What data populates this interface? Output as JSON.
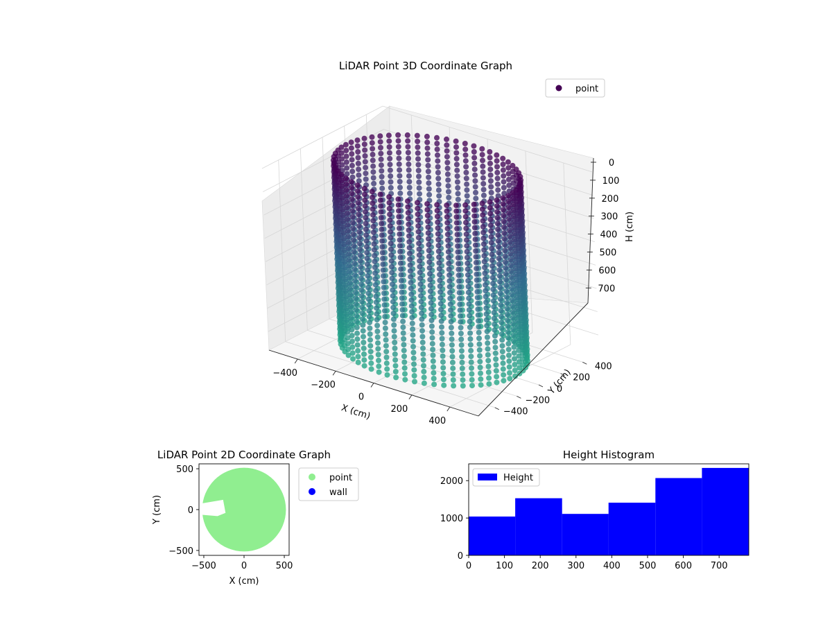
{
  "chart_data": [
    {
      "type": "scatter",
      "title": "LiDAR Point 3D Coordinate Graph",
      "xlabel": "X (cm)",
      "ylabel": "Y (cm)",
      "zlabel": "H (cm)",
      "xlim": [
        -550,
        550
      ],
      "ylim": [
        -550,
        550
      ],
      "zlim": [
        780,
        0
      ],
      "x_ticks": [
        -400,
        -200,
        0,
        200,
        400
      ],
      "y_ticks": [
        -400,
        -200,
        0,
        200,
        400
      ],
      "z_ticks": [
        0,
        100,
        200,
        300,
        400,
        500,
        600,
        700
      ],
      "grid": true,
      "legend": {
        "position": "top-right",
        "entries": [
          "point"
        ]
      },
      "colors": {
        "top": "#440154",
        "bottom": "#21a685"
      },
      "series": [
        {
          "name": "point",
          "shape": "cylindrical wall of points",
          "radius_cm": 520,
          "height_range_cm": [
            0,
            780
          ],
          "angle_step_deg": 6,
          "height_step_cm": 25
        }
      ]
    },
    {
      "type": "scatter",
      "title": "LiDAR Point 2D Coordinate Graph",
      "xlabel": "X (cm)",
      "ylabel": "Y (cm)",
      "xlim": [
        -560,
        560
      ],
      "ylim": [
        -560,
        560
      ],
      "x_ticks": [
        -500,
        0,
        500
      ],
      "y_ticks": [
        -500,
        0,
        500
      ],
      "legend": {
        "position": "right-outside",
        "entries": [
          "point",
          "wall"
        ]
      },
      "colors": {
        "point": "#90ee90",
        "wall": "#0000ff"
      },
      "series": [
        {
          "name": "point",
          "shape": "filled disc",
          "radius_cm": 520
        },
        {
          "name": "wall",
          "values": []
        }
      ]
    },
    {
      "type": "bar",
      "title": "Height Histogram",
      "xlabel": "",
      "ylabel": "",
      "xlim": [
        0,
        783
      ],
      "ylim": [
        0,
        2450
      ],
      "x_ticks": [
        0,
        100,
        200,
        300,
        400,
        500,
        600,
        700
      ],
      "y_ticks": [
        0,
        1000,
        2000
      ],
      "legend": {
        "position": "top-left",
        "entries": [
          "Height"
        ]
      },
      "colors": {
        "bar": "#0000ff"
      },
      "bins": [
        {
          "start": 0,
          "end": 130,
          "count": 1040
        },
        {
          "start": 130,
          "end": 261,
          "count": 1530
        },
        {
          "start": 261,
          "end": 391,
          "count": 1110
        },
        {
          "start": 391,
          "end": 522,
          "count": 1410
        },
        {
          "start": 522,
          "end": 652,
          "count": 2070
        },
        {
          "start": 652,
          "end": 783,
          "count": 2340
        }
      ],
      "series": [
        {
          "name": "Height"
        }
      ]
    }
  ]
}
